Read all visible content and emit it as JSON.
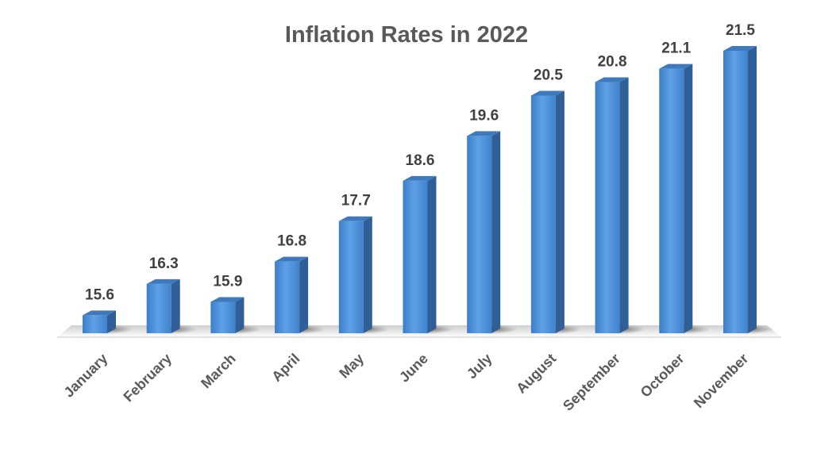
{
  "chart_data": {
    "type": "bar",
    "title": "Inflation Rates in 2022",
    "xlabel": "",
    "ylabel": "",
    "categories": [
      "January",
      "February",
      "March",
      "April",
      "May",
      "June",
      "July",
      "August",
      "September",
      "October",
      "November"
    ],
    "values": [
      15.6,
      16.3,
      15.9,
      16.8,
      17.7,
      18.6,
      19.6,
      20.5,
      20.8,
      21.1,
      21.5
    ],
    "data_labels": [
      "15.6",
      "16.3",
      "15.9",
      "16.8",
      "17.7",
      "18.6",
      "19.6",
      "20.5",
      "20.8",
      "21.1",
      "21.5"
    ],
    "ylim": [
      15.2,
      21.5
    ],
    "grid": false,
    "legend": "none",
    "style": "3d-column",
    "colors": {
      "bar_front": "#4a8fd6",
      "bar_side": "#2f5f96",
      "bar_top": "#3f79bd",
      "title": "#595959",
      "labels": "#404040"
    }
  }
}
